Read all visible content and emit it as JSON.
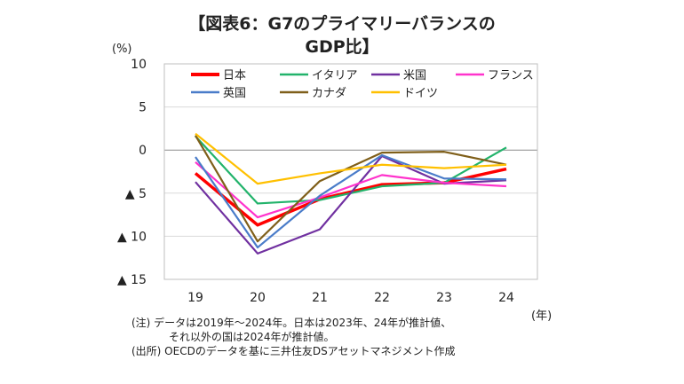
{
  "title_line1": "【図表6：G7のプライマリーバランスの",
  "title_line2": "GDP比】",
  "y_unit": "(%)",
  "x_unit": "(年)",
  "notes": {
    "line1": "(注) データは2019年～2024年。日本は2023年、24年が推計値、",
    "line2": "それ以外の国は2024年が推計値。",
    "line3": "(出所) OECDのデータを基に三井住友DSアセットマネジメント作成"
  },
  "chart_data": {
    "type": "line",
    "x": [
      19,
      20,
      21,
      22,
      23,
      24
    ],
    "x_tick_labels": [
      "19",
      "20",
      "21",
      "22",
      "23",
      "24"
    ],
    "y_ticks": [
      10,
      5,
      0,
      -5,
      -10,
      -15
    ],
    "y_tick_labels": [
      "10",
      "5",
      "0",
      "▲ 5",
      "▲ 10",
      "▲ 15"
    ],
    "ylim": [
      -15,
      10
    ],
    "grid": true,
    "legend_position": "top",
    "series": [
      {
        "name": "日本",
        "color": "#ff0000",
        "values": [
          -2.7,
          -8.7,
          -5.7,
          -4.0,
          -3.8,
          -2.2
        ]
      },
      {
        "name": "イタリア",
        "color": "#22b36b",
        "values": [
          1.6,
          -6.2,
          -5.8,
          -4.2,
          -3.8,
          0.3
        ]
      },
      {
        "name": "米国",
        "color": "#7030a0",
        "values": [
          -3.7,
          -12.0,
          -9.2,
          -0.7,
          -3.9,
          -3.5
        ]
      },
      {
        "name": "フランス",
        "color": "#ff33cc",
        "values": [
          -1.4,
          -7.8,
          -5.5,
          -2.9,
          -3.8,
          -4.2
        ]
      },
      {
        "name": "英国",
        "color": "#4a7cc9",
        "values": [
          -0.8,
          -11.3,
          -5.3,
          -0.6,
          -3.3,
          -3.4
        ]
      },
      {
        "name": "カナダ",
        "color": "#7f5f1a",
        "values": [
          1.7,
          -10.6,
          -3.6,
          -0.3,
          -0.2,
          -1.7
        ]
      },
      {
        "name": "ドイツ",
        "color": "#ffc000",
        "values": [
          1.9,
          -3.9,
          -2.7,
          -1.7,
          -2.1,
          -1.7
        ]
      }
    ]
  }
}
